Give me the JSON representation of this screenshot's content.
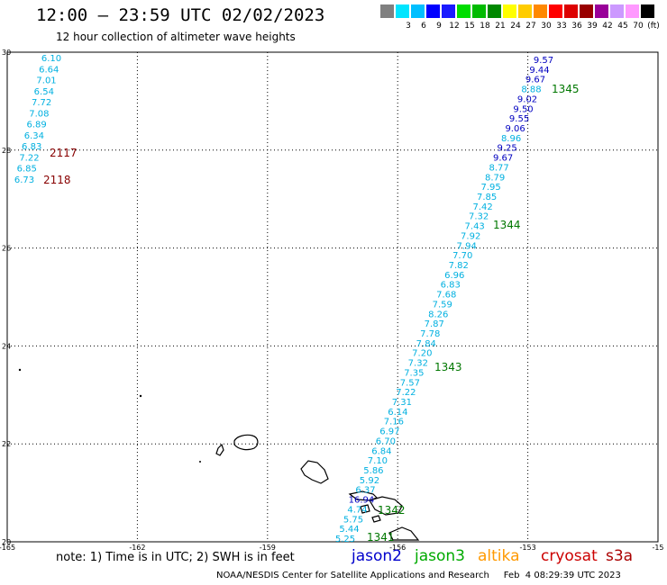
{
  "header": {
    "title": "12:00 – 23:59 UTC 02/02/2023",
    "subtitle": "12 hour collection of altimeter wave heights"
  },
  "legend": {
    "unit_label": "(ft)",
    "bins": [
      {
        "label": "",
        "color": "#808080"
      },
      {
        "label": "3",
        "color": "#00e5ff"
      },
      {
        "label": "6",
        "color": "#00bfff"
      },
      {
        "label": "9",
        "color": "#0000ff"
      },
      {
        "label": "12",
        "color": "#1a1aff"
      },
      {
        "label": "15",
        "color": "#00dd00"
      },
      {
        "label": "18",
        "color": "#00bb00"
      },
      {
        "label": "21",
        "color": "#008800"
      },
      {
        "label": "24",
        "color": "#ffff00"
      },
      {
        "label": "27",
        "color": "#ffcc00"
      },
      {
        "label": "30",
        "color": "#ff8800"
      },
      {
        "label": "33",
        "color": "#ff0000"
      },
      {
        "label": "36",
        "color": "#dd0000"
      },
      {
        "label": "39",
        "color": "#990000"
      },
      {
        "label": "42",
        "color": "#990099"
      },
      {
        "label": "45",
        "color": "#cc99ff"
      },
      {
        "label": "70",
        "color": "#ff99ff"
      },
      {
        "label": "",
        "color": "#000000"
      }
    ]
  },
  "map": {
    "lon_range": [
      -165,
      -150
    ],
    "lat_range": [
      20,
      30
    ],
    "lon_ticks": [
      "-165",
      "-162",
      "-159",
      "-156",
      "-153",
      "-15"
    ],
    "lat_ticks": [
      "30",
      "28",
      "26",
      "24",
      "22",
      "20"
    ],
    "colors": {
      "light": "#00b0e0",
      "dark": "#0000c0",
      "time": "#007700",
      "red_time": "#880000"
    },
    "track_west": {
      "values": [
        "6.10",
        "6.64",
        "7.01",
        "6.54",
        "7.72",
        "7.08",
        "6.89",
        "6.34",
        "6.83",
        "7.22",
        "6.85",
        "6.73"
      ],
      "times": [
        {
          "label": "2117"
        },
        {
          "label": "2118"
        }
      ]
    },
    "track_east": {
      "values": [
        {
          "v": "9.57",
          "c": "dark"
        },
        {
          "v": "9.44",
          "c": "dark"
        },
        {
          "v": "9.67",
          "c": "dark"
        },
        {
          "v": "8.88",
          "c": "light"
        },
        {
          "v": "9.02",
          "c": "dark"
        },
        {
          "v": "9.50",
          "c": "dark"
        },
        {
          "v": "9.55",
          "c": "dark"
        },
        {
          "v": "9.06",
          "c": "dark"
        },
        {
          "v": "8.96",
          "c": "light"
        },
        {
          "v": "9.25",
          "c": "dark"
        },
        {
          "v": "9.67",
          "c": "dark"
        },
        {
          "v": "8.77",
          "c": "light"
        },
        {
          "v": "8.79",
          "c": "light"
        },
        {
          "v": "7.95",
          "c": "light"
        },
        {
          "v": "7.85",
          "c": "light"
        },
        {
          "v": "7.42",
          "c": "light"
        },
        {
          "v": "7.32",
          "c": "light"
        },
        {
          "v": "7.43",
          "c": "light"
        },
        {
          "v": "7.92",
          "c": "light"
        },
        {
          "v": "7.94",
          "c": "light"
        },
        {
          "v": "7.70",
          "c": "light"
        },
        {
          "v": "7.82",
          "c": "light"
        },
        {
          "v": "6.96",
          "c": "light"
        },
        {
          "v": "6.83",
          "c": "light"
        },
        {
          "v": "7.68",
          "c": "light"
        },
        {
          "v": "7.59",
          "c": "light"
        },
        {
          "v": "8.26",
          "c": "light"
        },
        {
          "v": "7.87",
          "c": "light"
        },
        {
          "v": "7.78",
          "c": "light"
        },
        {
          "v": "7.84",
          "c": "light"
        },
        {
          "v": "7.20",
          "c": "light"
        },
        {
          "v": "7.32",
          "c": "light"
        },
        {
          "v": "7.35",
          "c": "light"
        },
        {
          "v": "7.57",
          "c": "light"
        },
        {
          "v": "7.22",
          "c": "light"
        },
        {
          "v": "7.31",
          "c": "light"
        },
        {
          "v": "6.14",
          "c": "light"
        },
        {
          "v": "7.16",
          "c": "light"
        },
        {
          "v": "6.97",
          "c": "light"
        },
        {
          "v": "6.70",
          "c": "light"
        },
        {
          "v": "6.84",
          "c": "light"
        },
        {
          "v": "7.10",
          "c": "light"
        },
        {
          "v": "5.86",
          "c": "light"
        },
        {
          "v": "5.92",
          "c": "light"
        },
        {
          "v": "6.37",
          "c": "light"
        },
        {
          "v": "16.94",
          "c": "dark"
        },
        {
          "v": "4.74",
          "c": "light"
        },
        {
          "v": "5.75",
          "c": "light"
        },
        {
          "v": "5.44",
          "c": "light"
        },
        {
          "v": "5.25",
          "c": "light"
        }
      ],
      "times": [
        {
          "label": "1345"
        },
        {
          "label": "1344"
        },
        {
          "label": "1343"
        },
        {
          "label": "1342"
        },
        {
          "label": "1341"
        }
      ]
    }
  },
  "footer": {
    "note": "note: 1) Time is in UTC; 2) SWH is in feet",
    "satellites": [
      {
        "name": "jason2",
        "color": "#0000cc"
      },
      {
        "name": "jason3",
        "color": "#00aa00"
      },
      {
        "name": "altika",
        "color": "#ff9900"
      },
      {
        "name": "cryosat",
        "color": "#cc0000"
      },
      {
        "name": "s3a",
        "color": "#aa0000"
      }
    ],
    "credit": "NOAA/NESDIS Center for Satellite Applications and Research     Feb  4 08:29:39 UTC 2023"
  }
}
